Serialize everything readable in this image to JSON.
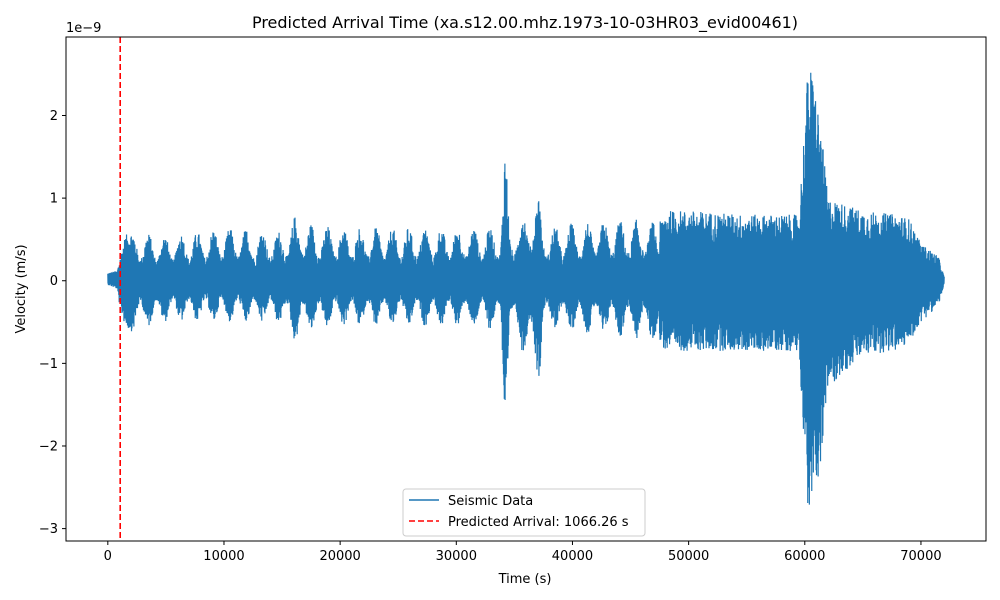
{
  "chart_data": {
    "type": "line",
    "title": "Predicted Arrival Time (xa.s12.00.mhz.1973-10-03HR03_evid00461)",
    "xlabel": "Time (s)",
    "ylabel": "Velocity (m/s)",
    "y_offset_label": "1e−9",
    "xlim": [
      -3600,
      75600
    ],
    "ylim": [
      -3.15,
      2.95
    ],
    "x_ticks": [
      0,
      10000,
      20000,
      30000,
      40000,
      50000,
      60000,
      70000
    ],
    "x_tick_labels": [
      "0",
      "10000",
      "20000",
      "30000",
      "40000",
      "50000",
      "60000",
      "70000"
    ],
    "y_ticks": [
      -3,
      -2,
      -1,
      0,
      1,
      2
    ],
    "y_tick_labels": [
      "−3",
      "−2",
      "−1",
      "0",
      "1",
      "2"
    ],
    "grid": false,
    "legend_position": "lower center",
    "series": [
      {
        "name": "Seismic Data",
        "color": "#1f77b4",
        "style": "solid",
        "x_range": [
          0,
          72000
        ],
        "amplitude_envelope": {
          "note_units": "1e-9 m/s",
          "x": [
            0,
            800,
            1066,
            1500,
            2000,
            5000,
            10000,
            15000,
            16200,
            17000,
            20000,
            25000,
            30000,
            33800,
            34200,
            34600,
            37200,
            37400,
            40000,
            45000,
            47500,
            48000,
            50000,
            55000,
            59500,
            60300,
            60800,
            61500,
            62000,
            65000,
            68000,
            69000,
            70000,
            71500,
            72000
          ],
          "upper": [
            0.1,
            0.12,
            0.3,
            0.55,
            0.6,
            0.55,
            0.65,
            0.6,
            0.8,
            0.7,
            0.65,
            0.65,
            0.65,
            0.65,
            1.7,
            0.65,
            1.05,
            0.65,
            0.7,
            0.75,
            0.7,
            0.85,
            0.85,
            0.8,
            0.8,
            2.65,
            2.45,
            1.7,
            1.0,
            0.85,
            0.8,
            0.75,
            0.45,
            0.3,
            0.05
          ],
          "lower": [
            -0.05,
            -0.1,
            -0.35,
            -0.55,
            -0.62,
            -0.5,
            -0.5,
            -0.52,
            -0.75,
            -0.62,
            -0.55,
            -0.55,
            -0.55,
            -0.6,
            -2.12,
            -0.6,
            -1.22,
            -0.6,
            -0.62,
            -0.7,
            -0.75,
            -0.85,
            -0.85,
            -0.85,
            -0.85,
            -2.85,
            -2.6,
            -2.15,
            -1.3,
            -0.9,
            -0.85,
            -0.75,
            -0.5,
            -0.3,
            -0.05
          ]
        }
      },
      {
        "name": "Predicted Arrival: 1066.26 s",
        "color": "#ff0000",
        "style": "dashed",
        "type": "vline",
        "x": 1066.26
      }
    ]
  }
}
